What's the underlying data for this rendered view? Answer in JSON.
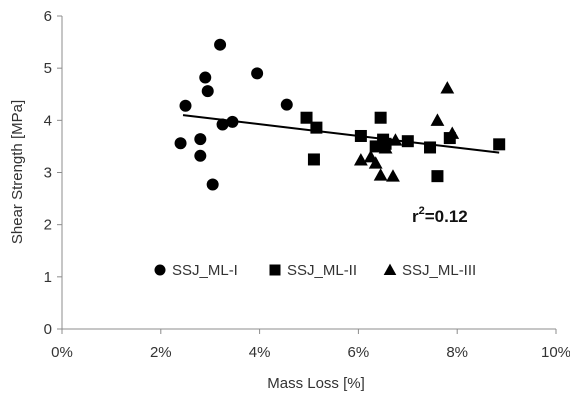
{
  "chart_data": {
    "type": "scatter",
    "xlabel": "Mass Loss [%]",
    "ylabel": "Shear Strength [MPa]",
    "xlim": [
      0,
      10
    ],
    "ylim": [
      0,
      6
    ],
    "x_ticks": [
      0,
      2,
      4,
      6,
      8,
      10
    ],
    "x_tick_labels": [
      "0%",
      "2%",
      "4%",
      "6%",
      "8%",
      "10%"
    ],
    "y_ticks": [
      0,
      1,
      2,
      3,
      4,
      5,
      6
    ],
    "y_tick_labels": [
      "0",
      "1",
      "2",
      "3",
      "4",
      "5",
      "6"
    ],
    "grid": false,
    "legend_position": "bottom-left",
    "series": [
      {
        "name": "SSJ_ML-I",
        "marker": "circle",
        "color": "#000000",
        "points": [
          [
            2.4,
            3.56
          ],
          [
            2.5,
            4.28
          ],
          [
            2.8,
            3.64
          ],
          [
            2.8,
            3.32
          ],
          [
            2.9,
            4.82
          ],
          [
            2.95,
            4.56
          ],
          [
            3.05,
            2.77
          ],
          [
            3.2,
            5.45
          ],
          [
            3.25,
            3.92
          ],
          [
            3.45,
            3.97
          ],
          [
            3.95,
            4.9
          ],
          [
            4.55,
            4.3
          ]
        ]
      },
      {
        "name": "SSJ_ML-II",
        "marker": "square",
        "color": "#000000",
        "points": [
          [
            4.95,
            4.05
          ],
          [
            5.1,
            3.25
          ],
          [
            5.15,
            3.86
          ],
          [
            6.05,
            3.7
          ],
          [
            6.35,
            3.5
          ],
          [
            6.45,
            4.05
          ],
          [
            6.5,
            3.63
          ],
          [
            6.55,
            3.55
          ],
          [
            7.0,
            3.6
          ],
          [
            7.45,
            3.48
          ],
          [
            7.6,
            2.93
          ],
          [
            7.85,
            3.66
          ],
          [
            8.85,
            3.54
          ]
        ]
      },
      {
        "name": "SSJ_ML-III",
        "marker": "triangle",
        "color": "#000000",
        "points": [
          [
            6.05,
            3.24
          ],
          [
            6.25,
            3.3
          ],
          [
            6.35,
            3.18
          ],
          [
            6.45,
            2.95
          ],
          [
            6.55,
            3.47
          ],
          [
            6.7,
            2.93
          ],
          [
            6.75,
            3.62
          ],
          [
            7.6,
            4.0
          ],
          [
            7.8,
            4.62
          ],
          [
            7.9,
            3.75
          ]
        ]
      }
    ],
    "trendline": {
      "type": "linear",
      "x": [
        2.45,
        8.85
      ],
      "y": [
        4.1,
        3.38
      ]
    },
    "annotation": {
      "prefix": "r",
      "superscript": "2",
      "suffix": "=0.12"
    }
  }
}
